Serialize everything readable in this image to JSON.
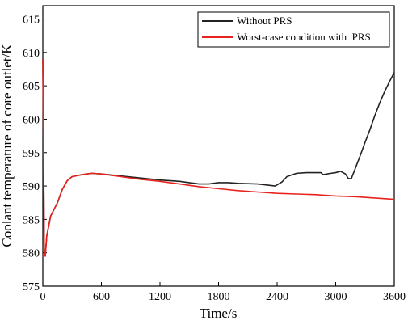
{
  "chart_data": {
    "type": "line",
    "xlabel": "Time/s",
    "ylabel": "Coolant temperature of core outlet/K",
    "xlim": [
      0,
      3600
    ],
    "ylim": [
      575,
      617
    ],
    "x_ticks": [
      "0",
      "600",
      "1200",
      "1800",
      "2400",
      "3000",
      "3600"
    ],
    "y_ticks": [
      "575",
      "580",
      "585",
      "590",
      "595",
      "600",
      "605",
      "610",
      "615"
    ],
    "grid": false,
    "legend_position": "top-right",
    "series": [
      {
        "name": "Without PRS",
        "color": "#222222",
        "points": [
          [
            0,
            609
          ],
          [
            5,
            600
          ],
          [
            10,
            590
          ],
          [
            15,
            580
          ],
          [
            25,
            579.5
          ],
          [
            40,
            582.5
          ],
          [
            80,
            585.5
          ],
          [
            150,
            587.5
          ],
          [
            200,
            589.5
          ],
          [
            250,
            590.8
          ],
          [
            300,
            591.4
          ],
          [
            400,
            591.7
          ],
          [
            500,
            591.9
          ],
          [
            600,
            591.8
          ],
          [
            800,
            591.5
          ],
          [
            1000,
            591.2
          ],
          [
            1200,
            590.9
          ],
          [
            1400,
            590.7
          ],
          [
            1500,
            590.5
          ],
          [
            1600,
            590.3
          ],
          [
            1700,
            590.3
          ],
          [
            1800,
            590.5
          ],
          [
            1900,
            590.5
          ],
          [
            2000,
            590.4
          ],
          [
            2200,
            590.3
          ],
          [
            2380,
            590.0
          ],
          [
            2450,
            590.6
          ],
          [
            2500,
            591.4
          ],
          [
            2600,
            591.9
          ],
          [
            2700,
            592.0
          ],
          [
            2800,
            592.0
          ],
          [
            2850,
            592.0
          ],
          [
            2870,
            591.7
          ],
          [
            2950,
            591.9
          ],
          [
            3000,
            592.0
          ],
          [
            3050,
            592.2
          ],
          [
            3100,
            591.8
          ],
          [
            3130,
            591.1
          ],
          [
            3160,
            591.1
          ],
          [
            3200,
            592.6
          ],
          [
            3250,
            594.5
          ],
          [
            3300,
            596.5
          ],
          [
            3350,
            598.4
          ],
          [
            3400,
            600.5
          ],
          [
            3450,
            602.4
          ],
          [
            3500,
            604.1
          ],
          [
            3550,
            605.6
          ],
          [
            3600,
            607.0
          ]
        ]
      },
      {
        "name": "Worst-case condition with  PRS",
        "color": "#e8231f",
        "points": [
          [
            0,
            609
          ],
          [
            5,
            600
          ],
          [
            10,
            590
          ],
          [
            15,
            580
          ],
          [
            25,
            579.5
          ],
          [
            40,
            582.5
          ],
          [
            80,
            585.5
          ],
          [
            150,
            587.5
          ],
          [
            200,
            589.5
          ],
          [
            250,
            590.8
          ],
          [
            300,
            591.4
          ],
          [
            400,
            591.7
          ],
          [
            500,
            591.9
          ],
          [
            600,
            591.8
          ],
          [
            800,
            591.4
          ],
          [
            1000,
            591.0
          ],
          [
            1200,
            590.7
          ],
          [
            1400,
            590.3
          ],
          [
            1600,
            589.9
          ],
          [
            1800,
            589.6
          ],
          [
            2000,
            589.3
          ],
          [
            2200,
            589.1
          ],
          [
            2400,
            588.9
          ],
          [
            2600,
            588.8
          ],
          [
            2800,
            588.7
          ],
          [
            3000,
            588.5
          ],
          [
            3200,
            588.4
          ],
          [
            3400,
            588.2
          ],
          [
            3600,
            588.0
          ]
        ]
      }
    ]
  }
}
